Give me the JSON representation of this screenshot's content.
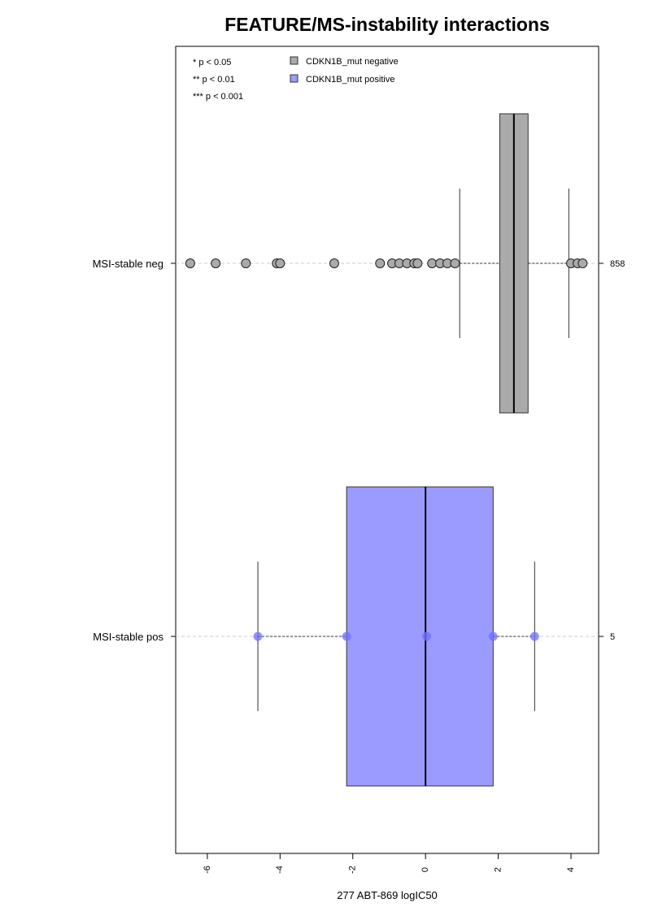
{
  "chart_data": {
    "type": "box",
    "title": "FEATURE/MS-instability interactions",
    "x_label": "277 ABT-869 logIC50",
    "xlim": [
      -6.87,
      4.76
    ],
    "xticks": [
      -6,
      -4,
      -2,
      0,
      2,
      4
    ],
    "categories": [
      "MSI-stable neg",
      "MSI-stable pos"
    ],
    "counts": [
      858,
      5
    ],
    "significance_legend": [
      "* p < 0.05",
      "** p < 0.01",
      "*** p < 0.001"
    ],
    "series": [
      {
        "name": "CDKN1B_mut negative",
        "color": "#aaaaaa",
        "whislo": 0.94,
        "q1": 2.04,
        "med": 2.43,
        "q3": 2.82,
        "whishi": 3.94,
        "outliers": [
          -6.47,
          -5.77,
          -4.94,
          -4.09,
          -4.0,
          -2.51,
          -1.25,
          -0.92,
          -0.72,
          -0.51,
          -0.31,
          -0.22,
          0.18,
          0.4,
          0.6,
          0.81,
          4.0,
          4.18,
          4.32
        ]
      },
      {
        "name": "CDKN1B_mut positive",
        "color": "#9b9bff",
        "whislo": -4.61,
        "q1": -2.17,
        "med": 0.0,
        "q3": 1.86,
        "whishi": 3.0,
        "points": [
          -4.61,
          -2.17,
          0.03,
          1.86,
          3.0
        ]
      }
    ]
  }
}
